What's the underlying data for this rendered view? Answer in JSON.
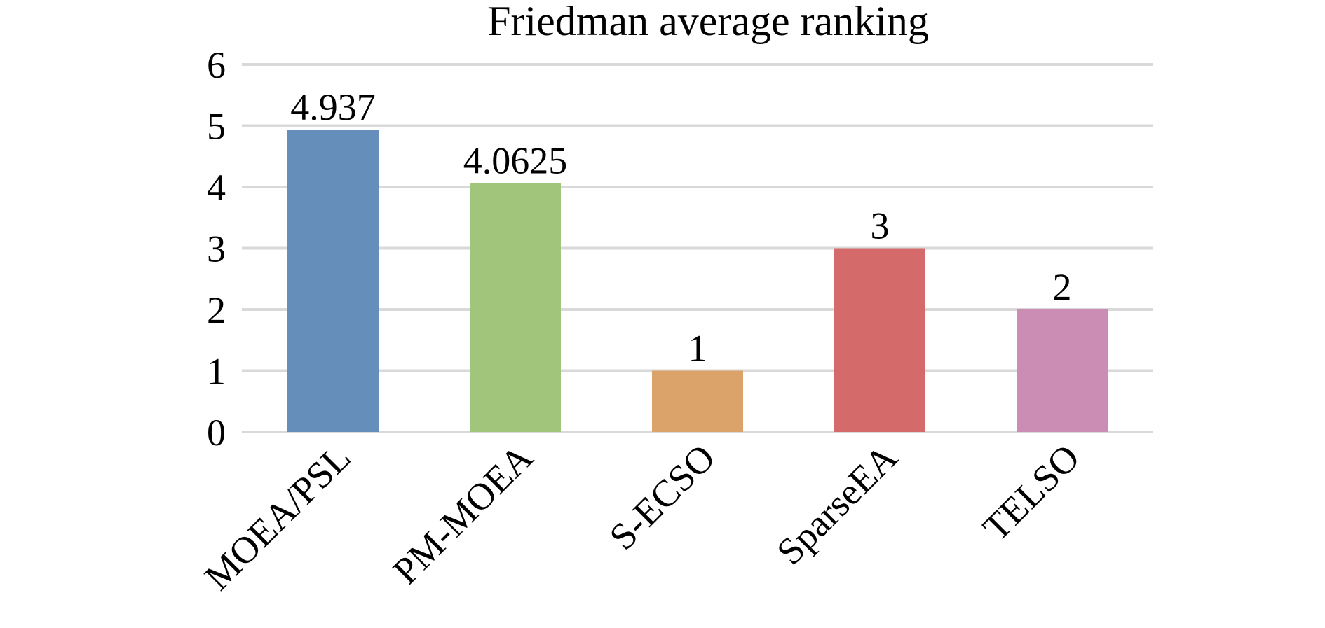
{
  "chart_data": {
    "type": "bar",
    "title": "Friedman average ranking",
    "xlabel": "",
    "ylabel": "",
    "categories": [
      "MOEA/PSL",
      "PM-MOEA",
      "S-ECSO",
      "SparseEA",
      "TELSO"
    ],
    "values": [
      4.937,
      4.0625,
      1,
      3,
      2
    ],
    "data_labels": [
      "4.937",
      "4.0625",
      "1",
      "3",
      "2"
    ],
    "colors": [
      "#658fba",
      "#a0c57b",
      "#dba369",
      "#d46a6a",
      "#cc8db4"
    ],
    "ylim": [
      0,
      6
    ],
    "yticks": [
      "0",
      "1",
      "2",
      "3",
      "4",
      "5",
      "6"
    ],
    "grid": true,
    "gridColor": "#d9d9d9",
    "legend": "none"
  }
}
